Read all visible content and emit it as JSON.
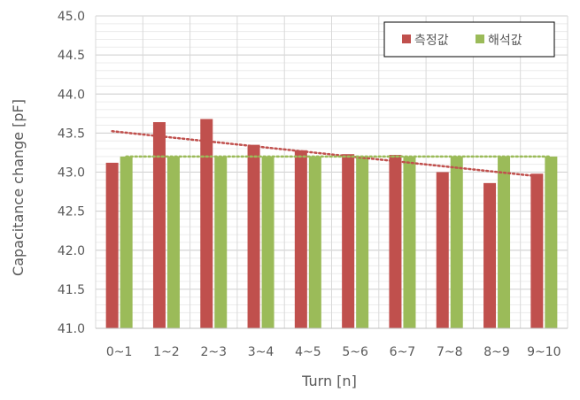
{
  "chart_data": {
    "type": "bar",
    "categories": [
      "0~1",
      "1~2",
      "2~3",
      "3~4",
      "4~5",
      "5~6",
      "6~7",
      "7~8",
      "8~9",
      "9~10"
    ],
    "series": [
      {
        "name": "측정값",
        "color": "#c0504d",
        "values": [
          43.12,
          43.64,
          43.68,
          43.35,
          43.28,
          43.23,
          43.22,
          43.0,
          42.86,
          42.98
        ]
      },
      {
        "name": "해석값",
        "color": "#9bbb59",
        "values": [
          43.2,
          43.2,
          43.2,
          43.2,
          43.2,
          43.2,
          43.2,
          43.2,
          43.2,
          43.2
        ]
      }
    ],
    "trendlines": [
      {
        "series": "측정값",
        "type": "linear",
        "style": "dotted",
        "color": "#c0504d"
      },
      {
        "series": "해석값",
        "type": "linear",
        "style": "dotted",
        "color": "#9bbb59"
      }
    ],
    "xlabel": "Turn [n]",
    "ylabel": "Capacitance change [pF]",
    "ylim": [
      41.0,
      45.0
    ],
    "ytick_step": 0.5,
    "grid": true,
    "legend_position": "top-right"
  }
}
